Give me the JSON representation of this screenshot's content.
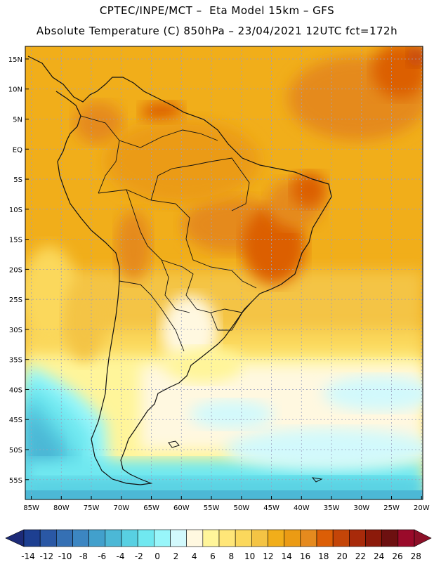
{
  "header": {
    "line1": "CPTEC/INPE/MCT –  Eta Model 15km – GFS",
    "line2": "Absolute Temperature (C) 850hPa – 23/04/2021 12UTC fct=172h"
  },
  "axes": {
    "lat_labels": [
      "15N",
      "10N",
      "5N",
      "EQ",
      "5S",
      "10S",
      "15S",
      "20S",
      "25S",
      "30S",
      "35S",
      "40S",
      "45S",
      "50S",
      "55S"
    ],
    "lat_values": [
      15,
      10,
      5,
      0,
      -5,
      -10,
      -15,
      -20,
      -25,
      -30,
      -35,
      -40,
      -45,
      -50,
      -55
    ],
    "lon_labels": [
      "85W",
      "80W",
      "75W",
      "70W",
      "65W",
      "60W",
      "55W",
      "50W",
      "45W",
      "40W",
      "35W",
      "30W",
      "25W",
      "20W"
    ],
    "lon_values": [
      -85,
      -80,
      -75,
      -70,
      -65,
      -60,
      -55,
      -50,
      -45,
      -40,
      -35,
      -30,
      -25,
      -20
    ],
    "lat_range": [
      -58.3,
      17.1
    ],
    "lon_range": [
      -86.0,
      -19.8
    ]
  },
  "colorbar": {
    "labels": [
      "-14",
      "-12",
      "-10",
      "-8",
      "-6",
      "-4",
      "-2",
      "0",
      "2",
      "4",
      "6",
      "8",
      "10",
      "12",
      "14",
      "16",
      "18",
      "20",
      "22",
      "24",
      "26",
      "28"
    ],
    "colors": [
      "#1d3f91",
      "#2a58a5",
      "#3570b4",
      "#3c86c2",
      "#42a0cc",
      "#4cb8d6",
      "#58d0e2",
      "#70e8f0",
      "#98f6fa",
      "#d2f9fc",
      "#fff8e0",
      "#fff59a",
      "#ffe678",
      "#fbd85c",
      "#f4c444",
      "#f1ae1a",
      "#eb9b14",
      "#e58a1e",
      "#dc5e06",
      "#c44508",
      "#a82a0a",
      "#8c1a0a",
      "#6d1010",
      "#9a0a2a"
    ],
    "left_arrow_color": "#1d2b78",
    "right_arrow_color": "#8c1028"
  }
}
